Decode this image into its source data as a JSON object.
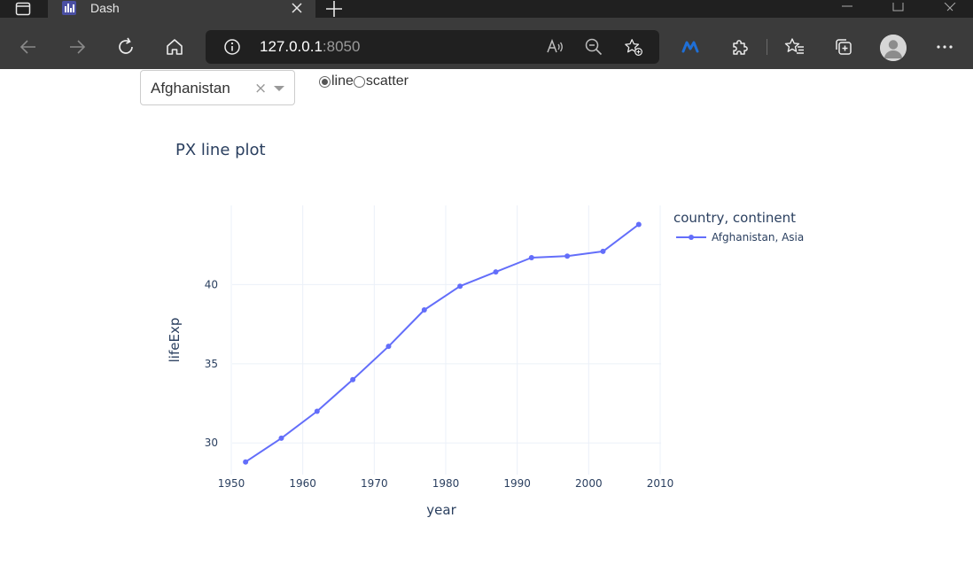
{
  "browser": {
    "tab_title": "Dash",
    "address_host": "127.0.0.1",
    "address_port": ":8050",
    "icons": {
      "tab_actions": "tab-actions-icon",
      "favicon": "dash-favicon-icon",
      "tab_close": "close-icon",
      "new_tab": "plus-icon",
      "back": "arrow-left-icon",
      "forward": "arrow-right-icon",
      "refresh": "refresh-icon",
      "home": "home-icon",
      "site_info": "info-icon",
      "read_aloud": "read-aloud-icon",
      "zoom": "zoom-out-icon",
      "favorite": "add-favorite-icon",
      "extension_m": "m-extension-icon",
      "extensions": "puzzle-icon",
      "favorites": "favorites-icon",
      "collections": "collections-icon",
      "profile": "avatar-icon",
      "menu": "more-icon"
    }
  },
  "controls": {
    "dropdown_value": "Afghanistan",
    "dropdown_clear": "×",
    "radio_options": [
      {
        "label": "line",
        "selected": true
      },
      {
        "label": "scatter",
        "selected": false
      }
    ]
  },
  "chart_data": {
    "type": "line",
    "title": "PX line plot",
    "xlabel": "year",
    "ylabel": "lifeExp",
    "xlim": [
      1950,
      2010
    ],
    "ylim": [
      28,
      45
    ],
    "x_ticks": [
      1950,
      1960,
      1970,
      1980,
      1990,
      2000,
      2010
    ],
    "y_ticks": [
      30,
      35,
      40
    ],
    "grid": true,
    "legend_title": "country, continent",
    "legend_position": "right",
    "series": [
      {
        "name": "Afghanistan, Asia",
        "color": "#636efa",
        "x": [
          1952,
          1957,
          1962,
          1967,
          1972,
          1977,
          1982,
          1987,
          1992,
          1997,
          2002,
          2007
        ],
        "y": [
          28.8,
          30.3,
          32.0,
          34.0,
          36.1,
          38.4,
          39.9,
          40.8,
          41.7,
          41.8,
          42.1,
          43.8
        ]
      }
    ]
  }
}
